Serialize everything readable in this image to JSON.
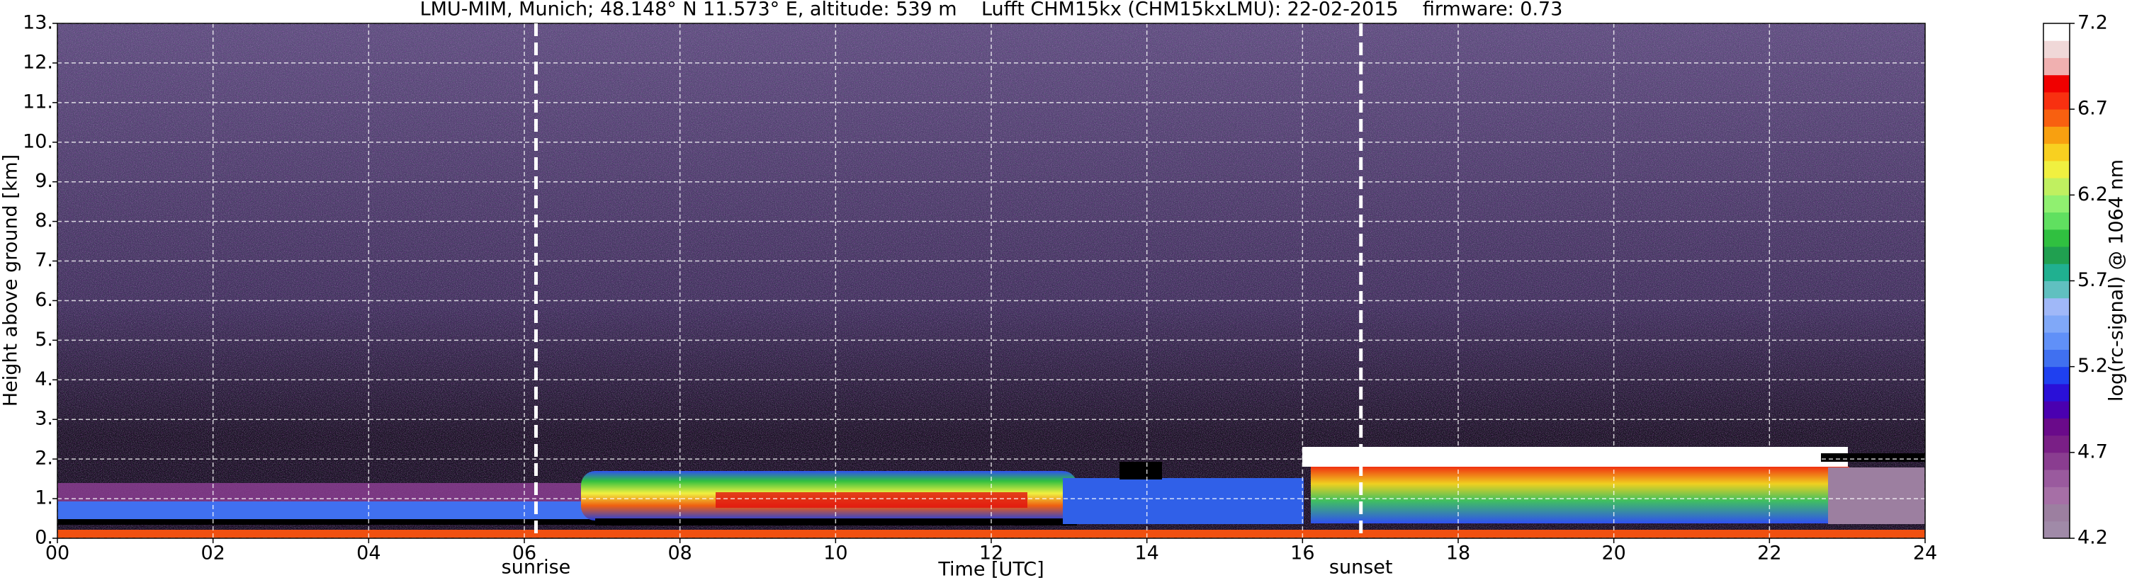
{
  "chart_data": {
    "type": "heatmap",
    "title": "LMU-MIM, Munich; 48.148° N 11.573° E, altitude: 539 m    Lufft CHM15kx (CHM15kxLMU): 22-02-2015    firmware: 0.73",
    "x_label": "Time [UTC]",
    "y_label": "Height above ground [km]",
    "xlim": [
      0,
      24
    ],
    "xticks": [
      {
        "value": 0,
        "label": "00"
      },
      {
        "value": 2,
        "label": "02"
      },
      {
        "value": 4,
        "label": "04"
      },
      {
        "value": 6,
        "label": "06"
      },
      {
        "value": 8,
        "label": "08"
      },
      {
        "value": 10,
        "label": "10"
      },
      {
        "value": 12,
        "label": "12"
      },
      {
        "value": 14,
        "label": "14"
      },
      {
        "value": 16,
        "label": "16"
      },
      {
        "value": 18,
        "label": "18"
      },
      {
        "value": 20,
        "label": "20"
      },
      {
        "value": 22,
        "label": "22"
      },
      {
        "value": 24,
        "label": "24"
      }
    ],
    "ylim": [
      0,
      13
    ],
    "yticks": [
      {
        "value": 0,
        "label": "0."
      },
      {
        "value": 1,
        "label": "1."
      },
      {
        "value": 2,
        "label": "2."
      },
      {
        "value": 3,
        "label": "3."
      },
      {
        "value": 4,
        "label": "4."
      },
      {
        "value": 5,
        "label": "5."
      },
      {
        "value": 6,
        "label": "6."
      },
      {
        "value": 7,
        "label": "7."
      },
      {
        "value": 8,
        "label": "8."
      },
      {
        "value": 9,
        "label": "9."
      },
      {
        "value": 10,
        "label": "10."
      },
      {
        "value": 11,
        "label": "11."
      },
      {
        "value": 12,
        "label": "12."
      },
      {
        "value": 13,
        "label": "13."
      }
    ],
    "grid": true,
    "annotations": [
      {
        "label": "sunrise",
        "x": 6.15
      },
      {
        "label": "sunset",
        "x": 16.75
      }
    ],
    "colorbar": {
      "label": "log(rc-signal) @ 1064 nm",
      "lim": [
        4.2,
        7.2
      ],
      "ticks": [
        4.2,
        4.7,
        5.2,
        5.7,
        6.2,
        6.7,
        7.2
      ],
      "colors": [
        "#a08aa8",
        "#9c7fa0",
        "#a66fa6",
        "#9a5a9e",
        "#8a3d90",
        "#7a1f86",
        "#6a0a8a",
        "#4a00b0",
        "#2a10d8",
        "#1f40f0",
        "#4070f0",
        "#6090f8",
        "#80a8f8",
        "#a0b8f8",
        "#60c0c0",
        "#20b090",
        "#20a050",
        "#30c040",
        "#60e060",
        "#90f070",
        "#c0f060",
        "#f0f040",
        "#f8d020",
        "#f8a010",
        "#f86010",
        "#f83010",
        "#f00000",
        "#f0b0b0",
        "#f0d8d8",
        "#ffffff"
      ]
    }
  }
}
